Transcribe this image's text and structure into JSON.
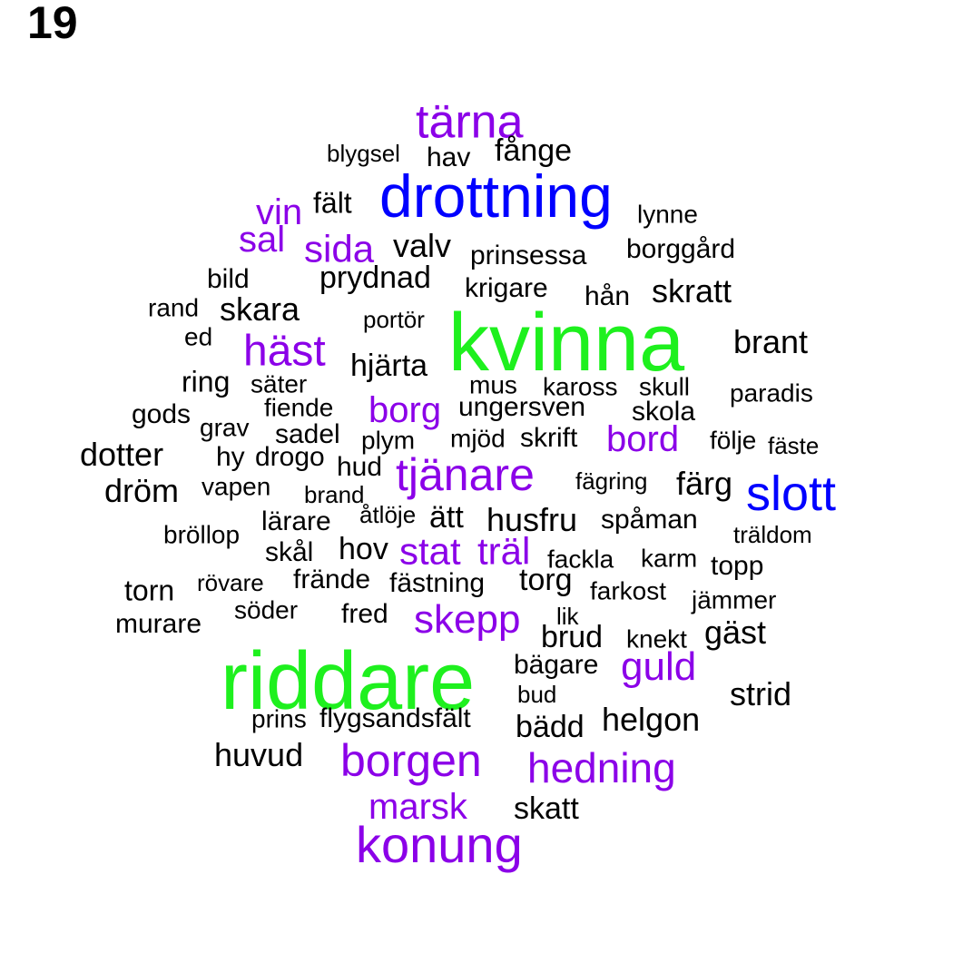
{
  "page_number": "19",
  "colors": {
    "black": "#000000",
    "purple": "#8b00e8",
    "blue": "#0000ff",
    "green": "#1ef01e"
  },
  "words": [
    {
      "text": "tärna",
      "c": "purple"
    },
    {
      "text": "blygsel",
      "c": "black"
    },
    {
      "text": "hav",
      "c": "black"
    },
    {
      "text": "fånge",
      "c": "black"
    },
    {
      "text": "drottning",
      "c": "blue"
    },
    {
      "text": "vin",
      "c": "purple"
    },
    {
      "text": "fält",
      "c": "black"
    },
    {
      "text": "lynne",
      "c": "black"
    },
    {
      "text": "sal",
      "c": "purple"
    },
    {
      "text": "sida",
      "c": "purple"
    },
    {
      "text": "valv",
      "c": "black"
    },
    {
      "text": "prinsessa",
      "c": "black"
    },
    {
      "text": "borggård",
      "c": "black"
    },
    {
      "text": "bild",
      "c": "black"
    },
    {
      "text": "prydnad",
      "c": "black"
    },
    {
      "text": "krigare",
      "c": "black"
    },
    {
      "text": "hån",
      "c": "black"
    },
    {
      "text": "skratt",
      "c": "black"
    },
    {
      "text": "rand",
      "c": "black"
    },
    {
      "text": "skara",
      "c": "black"
    },
    {
      "text": "portör",
      "c": "black"
    },
    {
      "text": "kvinna",
      "c": "green"
    },
    {
      "text": "ed",
      "c": "black"
    },
    {
      "text": "häst",
      "c": "purple"
    },
    {
      "text": "brant",
      "c": "black"
    },
    {
      "text": "hjärta",
      "c": "black"
    },
    {
      "text": "ring",
      "c": "black"
    },
    {
      "text": "säter",
      "c": "black"
    },
    {
      "text": "mus",
      "c": "black"
    },
    {
      "text": "kaross",
      "c": "black"
    },
    {
      "text": "skull",
      "c": "black"
    },
    {
      "text": "paradis",
      "c": "black"
    },
    {
      "text": "fiende",
      "c": "black"
    },
    {
      "text": "borg",
      "c": "purple"
    },
    {
      "text": "ungersven",
      "c": "black"
    },
    {
      "text": "gods",
      "c": "black"
    },
    {
      "text": "skola",
      "c": "black"
    },
    {
      "text": "grav",
      "c": "black"
    },
    {
      "text": "sadel",
      "c": "black"
    },
    {
      "text": "plym",
      "c": "black"
    },
    {
      "text": "mjöd",
      "c": "black"
    },
    {
      "text": "skrift",
      "c": "black"
    },
    {
      "text": "bord",
      "c": "purple"
    },
    {
      "text": "följe",
      "c": "black"
    },
    {
      "text": "fäste",
      "c": "black"
    },
    {
      "text": "dotter",
      "c": "black"
    },
    {
      "text": "hy",
      "c": "black"
    },
    {
      "text": "drogo",
      "c": "black"
    },
    {
      "text": "hud",
      "c": "black"
    },
    {
      "text": "tjänare",
      "c": "purple"
    },
    {
      "text": "fägring",
      "c": "black"
    },
    {
      "text": "färg",
      "c": "black"
    },
    {
      "text": "slott",
      "c": "blue"
    },
    {
      "text": "dröm",
      "c": "black"
    },
    {
      "text": "vapen",
      "c": "black"
    },
    {
      "text": "brand",
      "c": "black"
    },
    {
      "text": "åtlöje",
      "c": "black"
    },
    {
      "text": "ätt",
      "c": "black"
    },
    {
      "text": "husfru",
      "c": "black"
    },
    {
      "text": "spåman",
      "c": "black"
    },
    {
      "text": "lärare",
      "c": "black"
    },
    {
      "text": "bröllop",
      "c": "black"
    },
    {
      "text": "träldom",
      "c": "black"
    },
    {
      "text": "skål",
      "c": "black"
    },
    {
      "text": "hov",
      "c": "black"
    },
    {
      "text": "stat",
      "c": "purple"
    },
    {
      "text": "träl",
      "c": "purple"
    },
    {
      "text": "fackla",
      "c": "black"
    },
    {
      "text": "karm",
      "c": "black"
    },
    {
      "text": "topp",
      "c": "black"
    },
    {
      "text": "torn",
      "c": "black"
    },
    {
      "text": "rövare",
      "c": "black"
    },
    {
      "text": "frände",
      "c": "black"
    },
    {
      "text": "fästning",
      "c": "black"
    },
    {
      "text": "torg",
      "c": "black"
    },
    {
      "text": "farkost",
      "c": "black"
    },
    {
      "text": "jämmer",
      "c": "black"
    },
    {
      "text": "söder",
      "c": "black"
    },
    {
      "text": "fred",
      "c": "black"
    },
    {
      "text": "skepp",
      "c": "purple"
    },
    {
      "text": "lik",
      "c": "black"
    },
    {
      "text": "murare",
      "c": "black"
    },
    {
      "text": "brud",
      "c": "black"
    },
    {
      "text": "knekt",
      "c": "black"
    },
    {
      "text": "gäst",
      "c": "black"
    },
    {
      "text": "riddare",
      "c": "green"
    },
    {
      "text": "bägare",
      "c": "black"
    },
    {
      "text": "guld",
      "c": "purple"
    },
    {
      "text": "bud",
      "c": "black"
    },
    {
      "text": "strid",
      "c": "black"
    },
    {
      "text": "prins",
      "c": "black"
    },
    {
      "text": "flygsandsfält",
      "c": "black"
    },
    {
      "text": "bädd",
      "c": "black"
    },
    {
      "text": "helgon",
      "c": "black"
    },
    {
      "text": "huvud",
      "c": "black"
    },
    {
      "text": "borgen",
      "c": "purple"
    },
    {
      "text": "hedning",
      "c": "purple"
    },
    {
      "text": "marsk",
      "c": "purple"
    },
    {
      "text": "skatt",
      "c": "black"
    },
    {
      "text": "konung",
      "c": "purple"
    }
  ]
}
